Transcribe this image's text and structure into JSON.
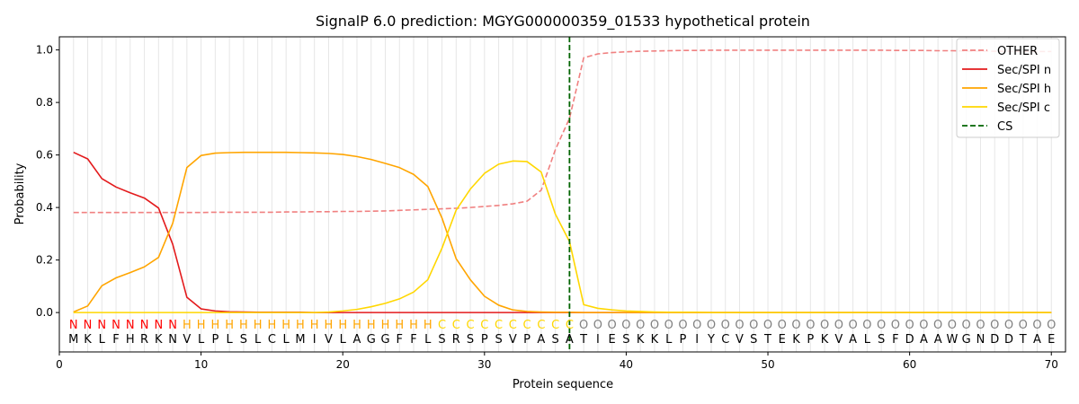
{
  "chart_data": {
    "type": "line",
    "title": "SignalP 6.0 prediction: MGYG000000359_01533 hypothetical protein",
    "xlabel": "Protein sequence",
    "ylabel": "Probability",
    "xlim": [
      0,
      71
    ],
    "ylim": [
      -0.15,
      1.05
    ],
    "xticks": [
      "0",
      "10",
      "20",
      "30",
      "40",
      "50",
      "60",
      "70"
    ],
    "yticks": [
      "0.0",
      "0.2",
      "0.4",
      "0.6",
      "0.8",
      "1.0"
    ],
    "grid": "vertical lines at each residue",
    "legend_position": "top-right",
    "sequence": [
      "M",
      "K",
      "L",
      "F",
      "H",
      "R",
      "K",
      "N",
      "V",
      "L",
      "P",
      "L",
      "S",
      "L",
      "C",
      "L",
      "M",
      "I",
      "V",
      "L",
      "A",
      "G",
      "G",
      "F",
      "F",
      "L",
      "S",
      "R",
      "S",
      "P",
      "S",
      "V",
      "P",
      "A",
      "S",
      "A",
      "T",
      "I",
      "E",
      "S",
      "K",
      "K",
      "L",
      "P",
      "I",
      "Y",
      "C",
      "V",
      "S",
      "T",
      "E",
      "K",
      "P",
      "K",
      "V",
      "A",
      "L",
      "S",
      "F",
      "D",
      "A",
      "A",
      "W",
      "G",
      "N",
      "D",
      "D",
      "T",
      "A",
      "E"
    ],
    "labels": [
      "N",
      "N",
      "N",
      "N",
      "N",
      "N",
      "N",
      "N",
      "H",
      "H",
      "H",
      "H",
      "H",
      "H",
      "H",
      "H",
      "H",
      "H",
      "H",
      "H",
      "H",
      "H",
      "H",
      "H",
      "H",
      "H",
      "C",
      "C",
      "C",
      "C",
      "C",
      "C",
      "C",
      "C",
      "C",
      "C",
      "O",
      "O",
      "O",
      "O",
      "O",
      "O",
      "O",
      "O",
      "O",
      "O",
      "O",
      "O",
      "O",
      "O",
      "O",
      "O",
      "O",
      "O",
      "O",
      "O",
      "O",
      "O",
      "O",
      "O",
      "O",
      "O",
      "O",
      "O",
      "O",
      "O",
      "O",
      "O",
      "O",
      "O"
    ],
    "label_colors": {
      "N": "#ff0000",
      "H": "#ffa500",
      "C": "#ffd700",
      "O": "#808080"
    },
    "cleavage_site": 36,
    "series": [
      {
        "name": "OTHER",
        "color": "#f08080",
        "dash": "dashed",
        "values": [
          0.381,
          0.381,
          0.381,
          0.381,
          0.381,
          0.381,
          0.381,
          0.381,
          0.381,
          0.381,
          0.382,
          0.382,
          0.382,
          0.382,
          0.382,
          0.383,
          0.383,
          0.384,
          0.384,
          0.385,
          0.385,
          0.386,
          0.387,
          0.389,
          0.391,
          0.393,
          0.395,
          0.397,
          0.4,
          0.404,
          0.408,
          0.414,
          0.424,
          0.466,
          0.62,
          0.74,
          0.97,
          0.985,
          0.99,
          0.993,
          0.995,
          0.996,
          0.997,
          0.998,
          0.998,
          0.999,
          0.999,
          0.999,
          0.999,
          0.999,
          0.999,
          0.999,
          0.999,
          0.999,
          0.999,
          0.999,
          0.999,
          0.999,
          0.998,
          0.998,
          0.998,
          0.997,
          0.997,
          0.996,
          0.996,
          0.995,
          0.995,
          0.994,
          0.994,
          0.994
        ]
      },
      {
        "name": "Sec/SPI n",
        "color": "#e31a1c",
        "dash": "solid",
        "values": [
          0.61,
          0.585,
          0.51,
          0.478,
          0.456,
          0.436,
          0.398,
          0.26,
          0.058,
          0.014,
          0.006,
          0.003,
          0.002,
          0.001,
          0.001,
          0.001,
          0.001,
          0.0,
          0.0,
          0.0,
          0.0,
          0.0,
          0.0,
          0.0,
          0.0,
          0.0,
          0.0,
          0.0,
          0.0,
          0.0,
          0.0,
          0.0,
          0.0,
          0.0,
          0.0,
          0.0,
          0.0,
          0.0,
          0.0,
          0.0,
          0.0,
          0.0,
          0.0,
          0.0,
          0.0,
          0.0,
          0.0,
          0.0,
          0.0,
          0.0,
          0.0,
          0.0,
          0.0,
          0.0,
          0.0,
          0.0,
          0.0,
          0.0,
          0.0,
          0.0,
          0.0,
          0.0,
          0.0,
          0.0,
          0.0,
          0.0,
          0.0,
          0.0,
          0.0,
          0.0
        ]
      },
      {
        "name": "Sec/SPI h",
        "color": "#ffa500",
        "dash": "solid",
        "values": [
          0.002,
          0.025,
          0.102,
          0.132,
          0.152,
          0.174,
          0.21,
          0.34,
          0.552,
          0.598,
          0.607,
          0.609,
          0.61,
          0.61,
          0.61,
          0.61,
          0.609,
          0.608,
          0.606,
          0.602,
          0.594,
          0.583,
          0.568,
          0.552,
          0.526,
          0.48,
          0.36,
          0.205,
          0.125,
          0.062,
          0.028,
          0.01,
          0.004,
          0.002,
          0.001,
          0.001,
          0.0,
          0.0,
          0.0,
          0.0,
          0.0,
          0.0,
          0.0,
          0.0,
          0.0,
          0.0,
          0.0,
          0.0,
          0.0,
          0.0,
          0.0,
          0.0,
          0.0,
          0.0,
          0.0,
          0.0,
          0.0,
          0.0,
          0.0,
          0.0,
          0.0,
          0.0,
          0.0,
          0.0,
          0.0,
          0.0,
          0.0,
          0.0,
          0.0,
          0.0
        ]
      },
      {
        "name": "Sec/SPI c",
        "color": "#ffd700",
        "dash": "solid",
        "values": [
          0.0,
          0.0,
          0.0,
          0.0,
          0.0,
          0.0,
          0.0,
          0.0,
          0.0,
          0.0,
          0.0,
          0.0,
          0.0,
          0.0,
          0.0,
          0.0,
          0.0,
          0.0,
          0.002,
          0.006,
          0.012,
          0.022,
          0.035,
          0.052,
          0.078,
          0.125,
          0.245,
          0.39,
          0.47,
          0.53,
          0.565,
          0.577,
          0.575,
          0.535,
          0.375,
          0.27,
          0.03,
          0.016,
          0.01,
          0.006,
          0.004,
          0.002,
          0.001,
          0.001,
          0.001,
          0.0,
          0.0,
          0.0,
          0.0,
          0.0,
          0.0,
          0.0,
          0.0,
          0.0,
          0.0,
          0.0,
          0.0,
          0.0,
          0.0,
          0.0,
          0.0,
          0.0,
          0.0,
          0.0,
          0.0,
          0.0,
          0.0,
          0.0,
          0.0,
          0.0
        ]
      }
    ],
    "cs_legend": {
      "name": "CS",
      "color": "#006400",
      "dash": "dashed"
    }
  }
}
